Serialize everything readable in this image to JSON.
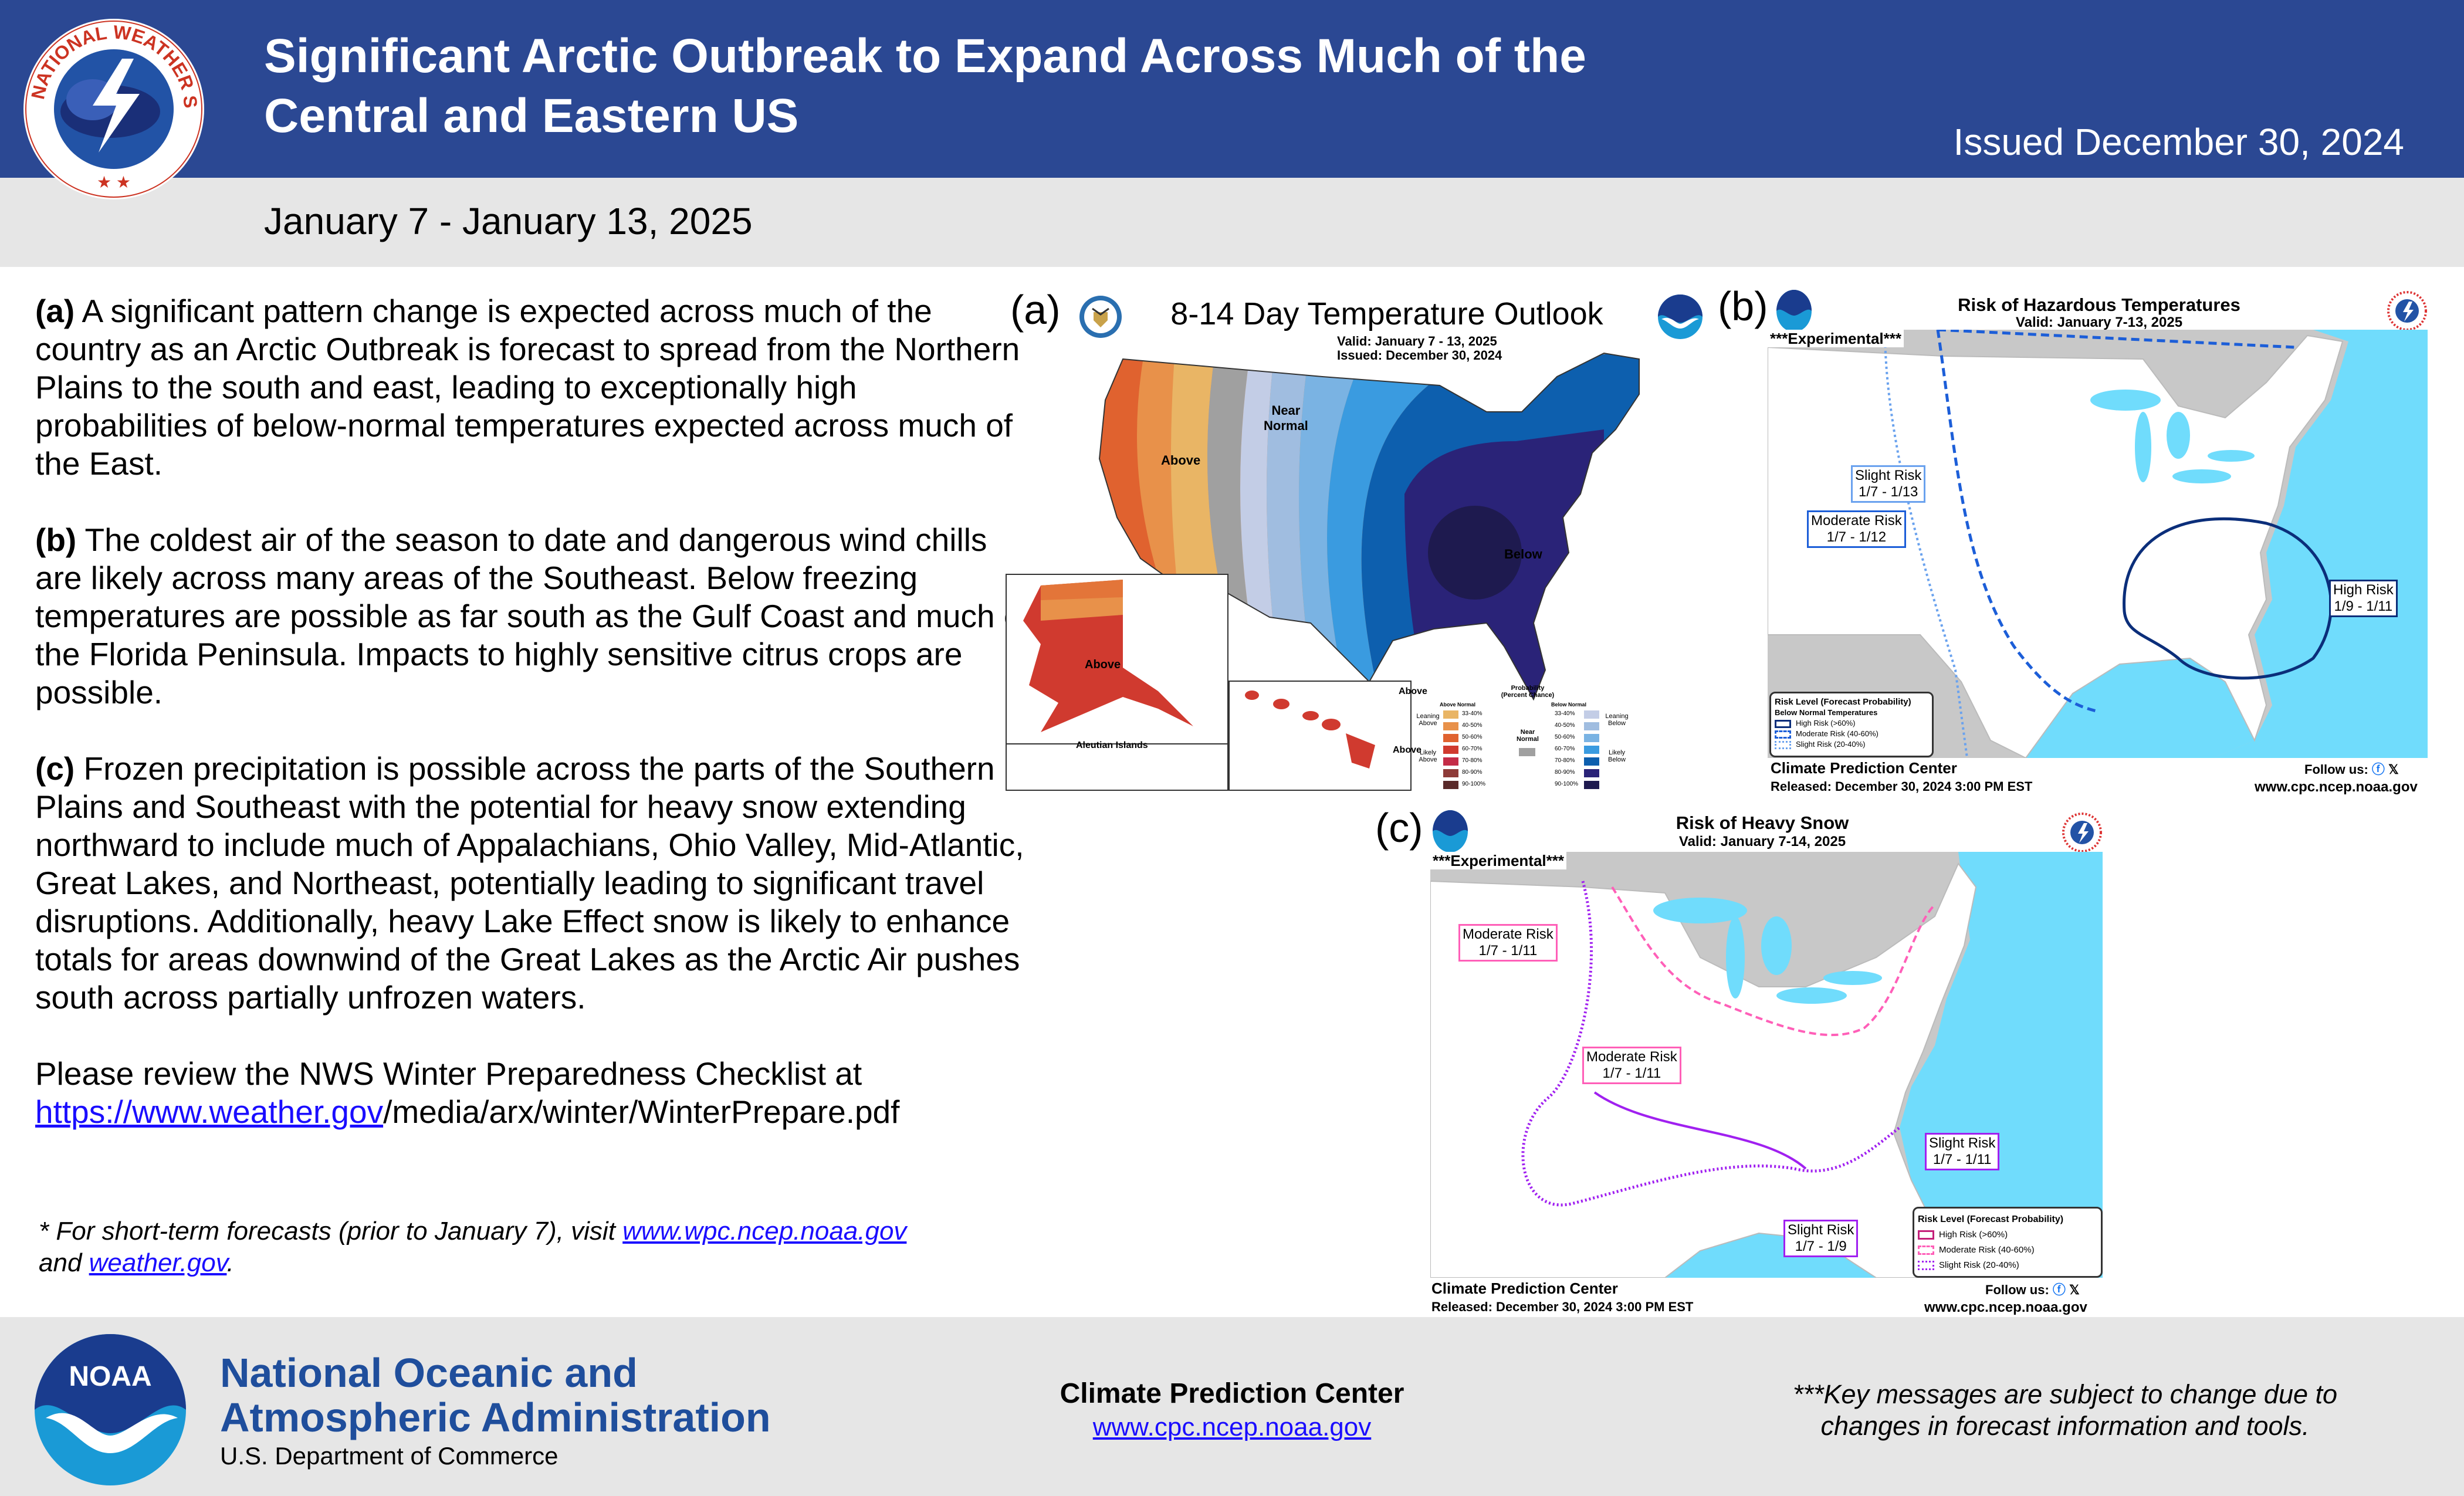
{
  "header": {
    "title_line1": "Significant Arctic Outbreak to Expand Across Much of the",
    "title_line2": "Central and Eastern US",
    "issued": "Issued December 30, 2024",
    "dates": "January 7 - January 13, 2025",
    "logo_text": "NATIONAL WEATHER SERVICE"
  },
  "body": {
    "a": {
      "label": "(a)",
      "text": " A significant pattern change is expected across much of the country as an Arctic Outbreak is forecast to spread from the Northern Plains to the south and east, leading to exceptionally high probabilities of below-normal temperatures expected across much of the East."
    },
    "b": {
      "label": "(b)",
      "text": " The coldest air of the season to date and dangerous wind chills are likely across many areas of the Southeast. Below freezing temperatures are possible as far south as the Gulf Coast and much of the Florida Peninsula. Impacts to highly sensitive citrus crops are possible."
    },
    "c": {
      "label": "(c)",
      "text": " Frozen precipitation is possible across the parts of the Southern Plains and Southeast with the potential for heavy snow extending northward to include much of Appalachians, Ohio Valley, Mid-Atlantic, Great Lakes, and Northeast, potentially leading to significant travel disruptions. Additionally, heavy Lake Effect snow is likely to enhance totals for areas downwind of the Great Lakes as the Arctic Air pushes south across partially unfrozen waters."
    },
    "review_prefix": "Please review the NWS Winter Preparedness Checklist at ",
    "review_link": "https://www.weather.gov",
    "review_suffix": "/media/arx/winter/WinterPrepare.pdf",
    "note_prefix": "* For short-term forecasts (prior to January 7), visit ",
    "note_link1": "www.wpc.ncep.noaa.gov",
    "note_mid": "and ",
    "note_link2": "weather.gov",
    "note_end": "."
  },
  "map_a": {
    "panel": "(a)",
    "title": "8-14 Day Temperature Outlook",
    "valid": "Valid:  January 7 - 13, 2025",
    "issued": "Issued:  December 30, 2024",
    "labels": {
      "above": "Above",
      "near": "Near\nNormal",
      "below": "Below",
      "alaska_above": "Above",
      "hawaii_above1": "Above",
      "hawaii_above2": "Above",
      "aleutian": "Aleutian Islands"
    },
    "legend": {
      "title1": "Probability",
      "title2": "(Percent Chance)",
      "above_header": "Above Normal",
      "below_header": "Below Normal",
      "leaning_above": "Leaning Above",
      "likely_above": "Likely Above",
      "near_normal": "Near Normal",
      "leaning_below": "Leaning Below",
      "likely_below": "Likely Below",
      "bins": [
        "33-40%",
        "40-50%",
        "50-60%",
        "60-70%",
        "70-80%",
        "80-90%",
        "90-100%"
      ],
      "above_colors": [
        "#e9b565",
        "#e8914a",
        "#e0622f",
        "#d03a2f",
        "#c42c47",
        "#8e3b38",
        "#5a2a2a"
      ],
      "below_colors": [
        "#c3cde6",
        "#a0bde0",
        "#7ab3e3",
        "#3a9be0",
        "#0d5fae",
        "#2a2378",
        "#1e1a4f"
      ],
      "near_color": "#a0a0a0"
    }
  },
  "map_b": {
    "panel": "(b)",
    "title": "Risk of Hazardous Temperatures",
    "valid": "Valid: January 7-13, 2025",
    "experimental": "***Experimental***",
    "labels": [
      {
        "risk": "Slight Risk",
        "dates": "1/7 - 1/13"
      },
      {
        "risk": "Moderate Risk",
        "dates": "1/7 - 1/12"
      },
      {
        "risk": "High Risk",
        "dates": "1/9 - 1/11"
      }
    ],
    "legend": {
      "title": "Risk Level (Forecast Probability)",
      "subtitle": "Below Normal Temperatures",
      "items": [
        "High Risk (>60%)",
        "Moderate Risk (40-60%)",
        "Slight Risk (20-40%)"
      ]
    },
    "footer": {
      "center": "Climate Prediction Center",
      "follow": "Follow us:",
      "released": "Released: December 30, 2024 3:00 PM EST",
      "url": "www.cpc.ncep.noaa.gov"
    }
  },
  "map_c": {
    "panel": "(c)",
    "title": "Risk of Heavy Snow",
    "valid": "Valid: January 7-14, 2025",
    "experimental": "***Experimental***",
    "labels": [
      {
        "risk": "Moderate Risk",
        "dates": "1/7 - 1/11"
      },
      {
        "risk": "Moderate Risk",
        "dates": "1/7 - 1/11"
      },
      {
        "risk": "Slight Risk",
        "dates": "1/7 - 1/11"
      },
      {
        "risk": "Slight Risk",
        "dates": "1/7 - 1/9"
      }
    ],
    "legend": {
      "title": "Risk Level (Forecast Probability)",
      "items": [
        "High Risk (>60%)",
        "Moderate Risk (40-60%)",
        "Slight Risk (20-40%)"
      ]
    },
    "footer": {
      "center": "Climate Prediction Center",
      "follow": "Follow us:",
      "released": "Released: December 30, 2024 3:00 PM EST",
      "url": "www.cpc.ncep.noaa.gov"
    }
  },
  "footer": {
    "org_line1": "National Oceanic and",
    "org_line2": "Atmospheric Administration",
    "dept": "U.S. Department of Commerce",
    "center": "Climate Prediction Center",
    "center_url": "www.cpc.ncep.noaa.gov",
    "disclaimer_line1": "***Key messages are subject to change due to",
    "disclaimer_line2": "changes in forecast information and tools.",
    "noaa_logo_text": "NOAA"
  },
  "colors": {
    "header": "#2b4893",
    "band": "#e6e6e6",
    "noaa_blue": "#1f4e9c",
    "link": "#1a0dff",
    "ocean": "#70dcfc",
    "canada": "#c8c8c8"
  }
}
